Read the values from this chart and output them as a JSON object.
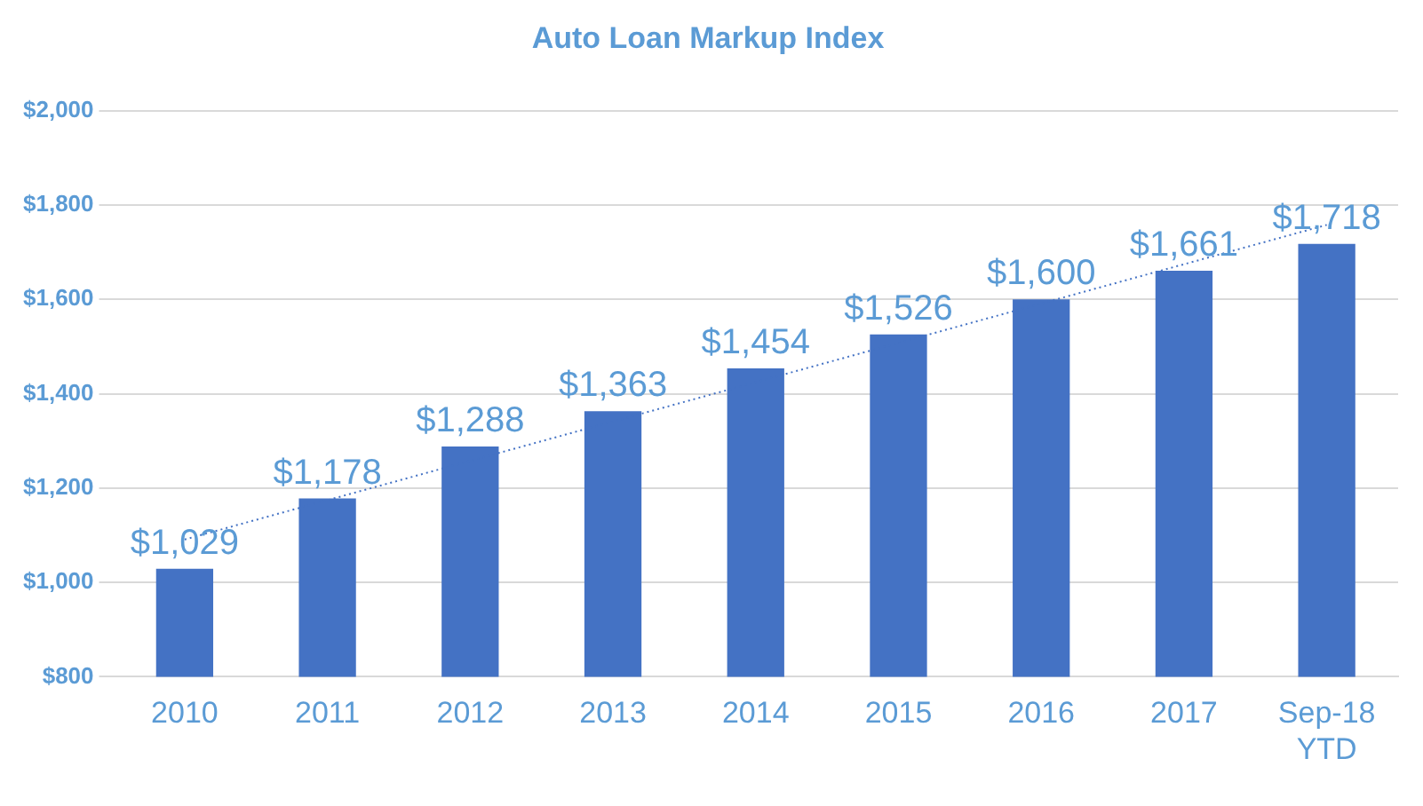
{
  "chart_data": {
    "type": "bar",
    "title": "Auto Loan Markup Index",
    "categories": [
      "2010",
      "2011",
      "2012",
      "2013",
      "2014",
      "2015",
      "2016",
      "2017",
      "Sep-18\nYTD"
    ],
    "series": [
      {
        "color": "#4472c4",
        "values": [
          1029,
          1178,
          1288,
          1363,
          1454,
          1526,
          1600,
          1661,
          1718
        ],
        "value_labels": [
          "$1,029",
          "$1,178",
          "$1,288",
          "$1,363",
          "$1,454",
          "$1,526",
          "$1,600",
          "$1,661",
          "$1,718"
        ]
      },
      {
        "type": "line",
        "color": "#4472c4",
        "line_style": "dotted",
        "values": [
          1091,
          null,
          null,
          null,
          null,
          null,
          null,
          null,
          1758
        ]
      }
    ],
    "ylim": [
      800,
      2000
    ],
    "yticks": [
      {
        "value": 800,
        "label": "$800"
      },
      {
        "value": 1000,
        "label": "$1,000"
      },
      {
        "value": 1200,
        "label": "$1,200"
      },
      {
        "value": 1400,
        "label": "$1,400"
      },
      {
        "value": 1600,
        "label": "$1,600"
      },
      {
        "value": 1800,
        "label": "$1,800"
      },
      {
        "value": 2000,
        "label": "$2,000"
      }
    ],
    "grid": "y",
    "legend": false
  }
}
